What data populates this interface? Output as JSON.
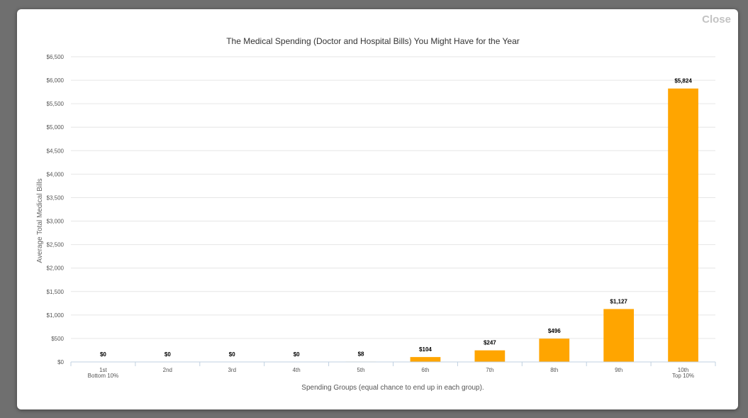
{
  "modal": {
    "close_label": "Close"
  },
  "chart_data": {
    "type": "bar",
    "title": "The Medical Spending (Doctor and Hospital Bills) You Might Have for the Year",
    "xlabel": "Spending Groups (equal chance to end up in each group).",
    "ylabel": "Average Total Medical Bills",
    "ylim": [
      0,
      6500
    ],
    "ytick_step": 500,
    "ytick_labels": [
      "$0",
      "$500",
      "$1,000",
      "$1,500",
      "$2,000",
      "$2,500",
      "$3,000",
      "$3,500",
      "$4,000",
      "$4,500",
      "$5,000",
      "$5,500",
      "$6,000",
      "$6,500"
    ],
    "categories": [
      [
        "1st",
        "Bottom 10%"
      ],
      [
        "2nd"
      ],
      [
        "3rd"
      ],
      [
        "4th"
      ],
      [
        "5th"
      ],
      [
        "6th"
      ],
      [
        "7th"
      ],
      [
        "8th"
      ],
      [
        "9th"
      ],
      [
        "10th",
        "Top 10%"
      ]
    ],
    "values": [
      0,
      0,
      0,
      0,
      8,
      104,
      247,
      496,
      1127,
      5824
    ],
    "data_labels": [
      "$0",
      "$0",
      "$0",
      "$0",
      "$8",
      "$104",
      "$247",
      "$496",
      "$1,127",
      "$5,824"
    ],
    "bar_color": "#FFA500",
    "grid": true,
    "legend": false
  }
}
